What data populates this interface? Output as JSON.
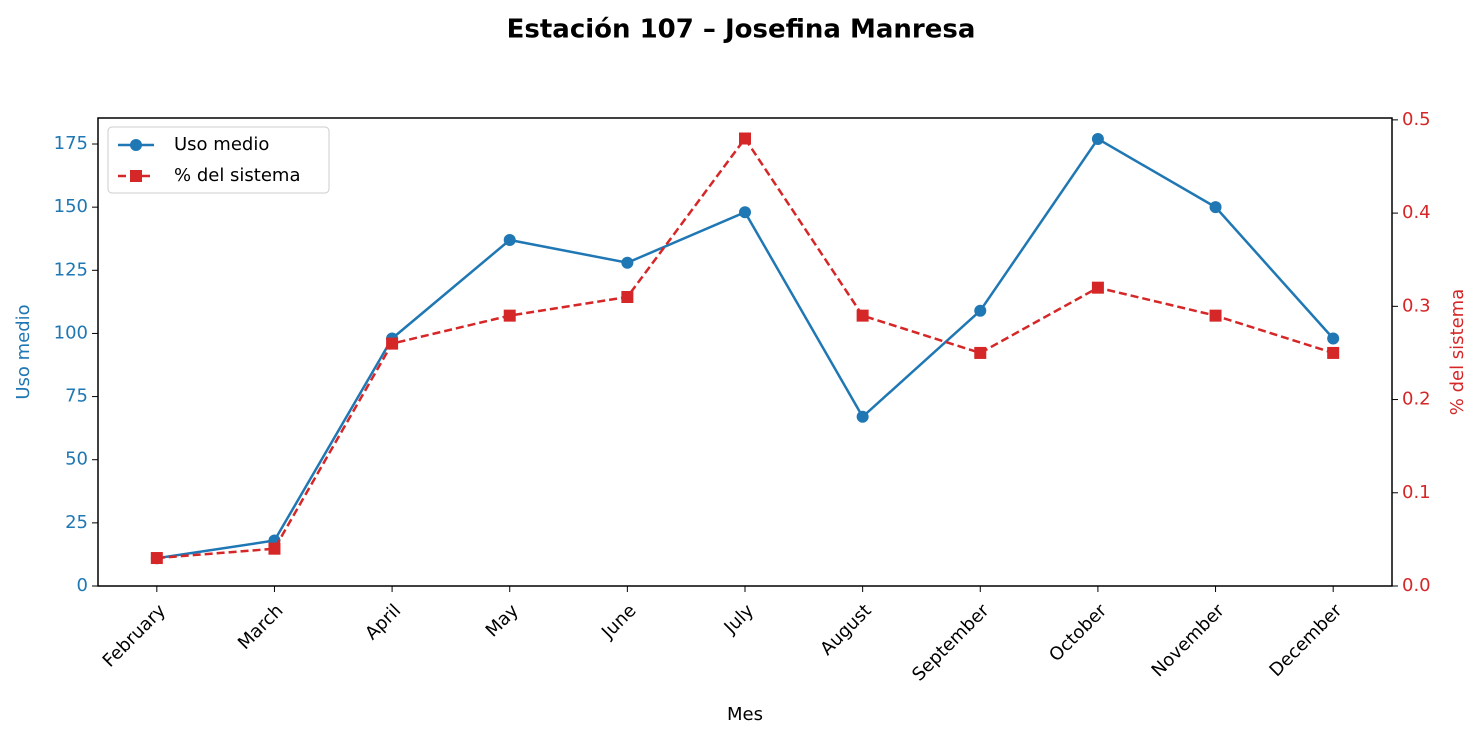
{
  "chart_data": {
    "type": "line",
    "title": "Estación 107 – Josefina Manresa",
    "xlabel": "Mes",
    "ylabel": "Uso medio",
    "y2label": "% del sistema",
    "categories": [
      "February",
      "March",
      "April",
      "May",
      "June",
      "July",
      "August",
      "September",
      "October",
      "November",
      "December"
    ],
    "series": [
      {
        "name": "Uso medio",
        "color": "#1f77b4",
        "values": [
          11,
          18,
          98,
          137,
          128,
          148,
          67,
          109,
          177,
          150,
          98
        ]
      },
      {
        "name": "% del sistema",
        "color": "#d62728",
        "axis": "y2",
        "values": [
          0.03,
          0.04,
          0.26,
          0.29,
          0.31,
          0.48,
          0.29,
          0.25,
          0.32,
          0.29,
          0.25
        ]
      }
    ],
    "ylim": [
      0,
      185.3
    ],
    "yticks": [
      0,
      25,
      50,
      75,
      100,
      125,
      150,
      175
    ],
    "y2lim": [
      0,
      0.502
    ],
    "y2ticks": [
      {
        "value": 0,
        "label": "0.0"
      },
      0.1,
      0.2,
      0.3,
      0.4,
      0.5
    ],
    "legend": "upper left",
    "grid": false
  }
}
